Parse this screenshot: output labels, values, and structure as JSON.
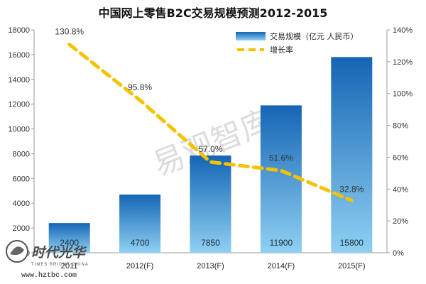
{
  "chart_data": {
    "type": "bar",
    "title": "中国网上零售B2C交易规模预测2012-2015",
    "categories": [
      "2011",
      "2012(F)",
      "2013(F)",
      "2014(F)",
      "2015(F)"
    ],
    "series": [
      {
        "name": "交易规模（亿元 人民币）",
        "type": "bar",
        "axis": "left",
        "values": [
          2400,
          4700,
          7850,
          11900,
          15800
        ]
      },
      {
        "name": "增长率",
        "type": "line",
        "axis": "right",
        "unit": "%",
        "values": [
          130.8,
          95.8,
          57.0,
          51.6,
          32.8
        ]
      }
    ],
    "bar_labels": [
      "2400",
      "4700",
      "7850",
      "11900",
      "15800"
    ],
    "line_labels": [
      "130.8%",
      "95.8%",
      "57.0%",
      "51.6%",
      "32.8%"
    ],
    "ylim_left": [
      0,
      18000
    ],
    "yticks_left": [
      "0",
      "2000",
      "4000",
      "6000",
      "8000",
      "10000",
      "12000",
      "14000",
      "16000",
      "18000"
    ],
    "ylim_right": [
      0,
      140
    ],
    "yticks_right": [
      "0%",
      "20%",
      "40%",
      "60%",
      "80%",
      "100%",
      "120%",
      "140%"
    ],
    "legend_position": "top-right",
    "colors": {
      "bar_top": "#1565b5",
      "bar_bottom": "#8fd0f2",
      "line": "#f5c200"
    }
  },
  "watermark": "易观智库",
  "logo": {
    "name": "时代光华",
    "tagline": "TIMES BRIGHT CHINA",
    "url": "www.hztbc.com"
  }
}
